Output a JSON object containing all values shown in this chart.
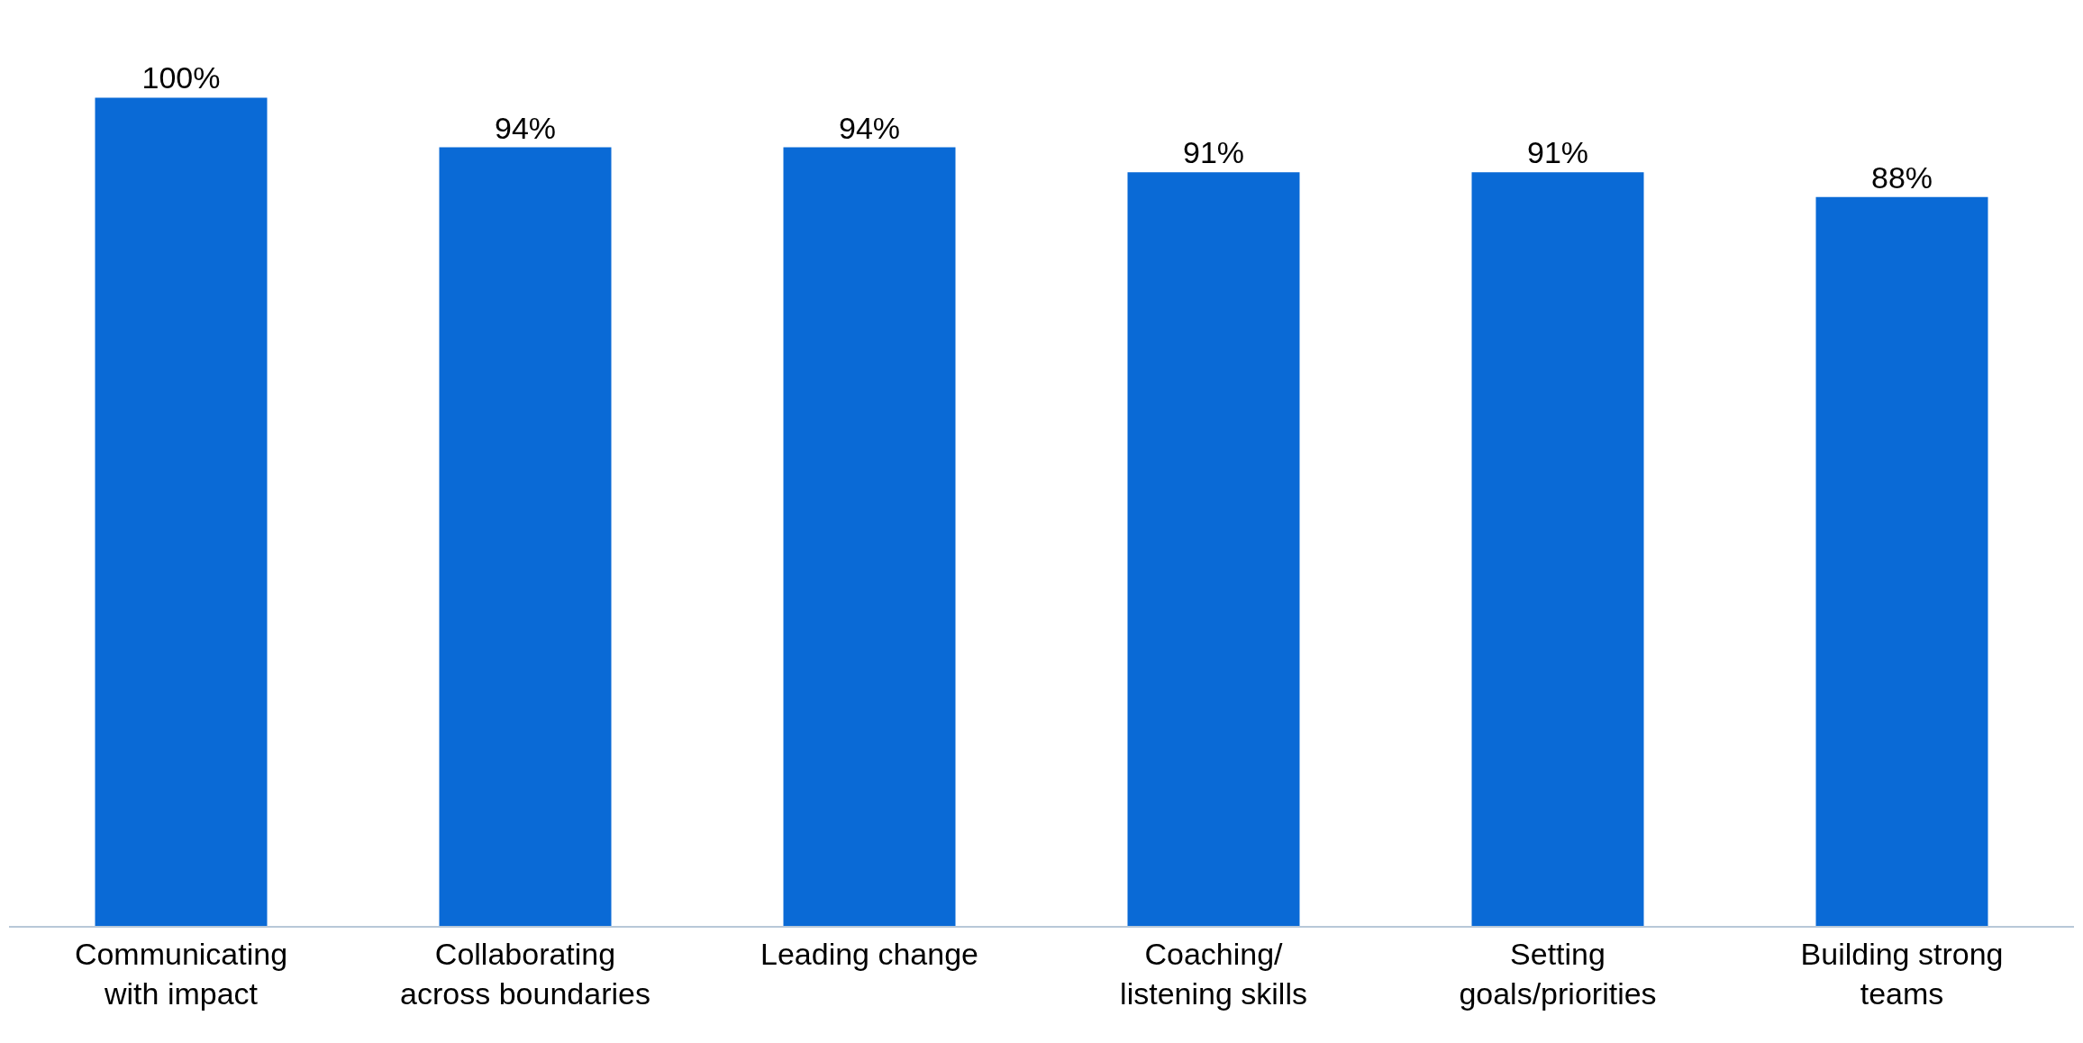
{
  "chart_data": {
    "type": "bar",
    "categories": [
      "Communicating\nwith impact",
      "Collaborating\nacross boundaries",
      "Leading change",
      "Coaching/\nlistening skills",
      "Setting\ngoals/priorities",
      "Building strong\nteams"
    ],
    "values": [
      100,
      94,
      94,
      91,
      91,
      88
    ],
    "value_labels": [
      "100%",
      "94%",
      "94%",
      "91%",
      "91%",
      "88%"
    ],
    "color": "#0a6ad6",
    "data_labels": true,
    "tick_labels": "x",
    "legend": false
  }
}
